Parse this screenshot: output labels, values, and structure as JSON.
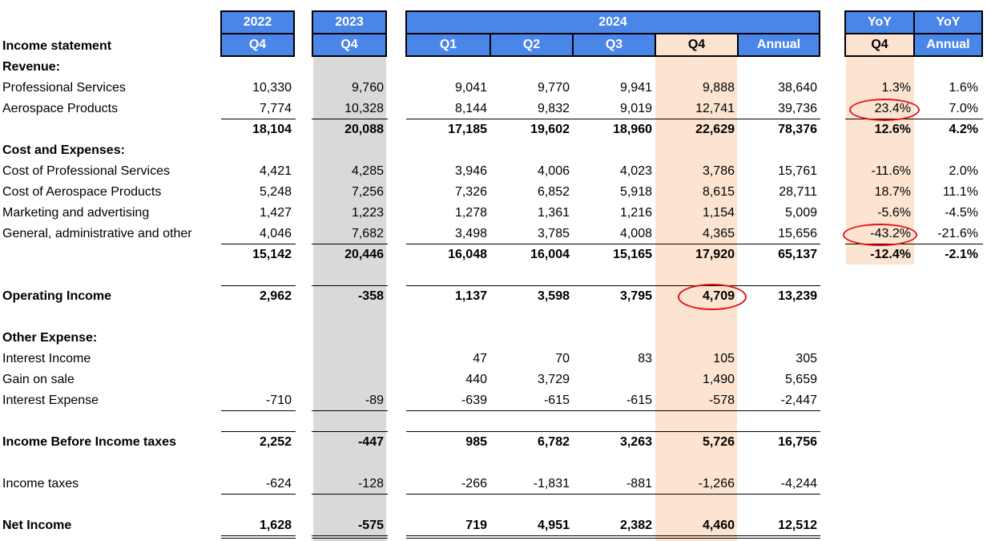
{
  "header": {
    "y2022": "2022",
    "y2023": "2023",
    "y2024": "2024",
    "yoy_q4": "YoY",
    "yoy_annual": "YoY",
    "q_2022": "Q4",
    "q_2023": "Q4",
    "q1": "Q1",
    "q2": "Q2",
    "q3": "Q3",
    "q4": "Q4",
    "annual": "Annual",
    "yoy_q4_sub": "Q4",
    "yoy_annual_sub": "Annual"
  },
  "title": "Income statement",
  "rows": [
    {
      "label": "Revenue:",
      "bold": true,
      "values": [
        "",
        "",
        "",
        "",
        "",
        "",
        "",
        "",
        ""
      ]
    },
    {
      "label": "Professional Services",
      "bold": false,
      "values": [
        "10,330",
        "9,760",
        "9,041",
        "9,770",
        "9,941",
        "9,888",
        "38,640",
        "1.3%",
        "1.6%"
      ]
    },
    {
      "label": "Aerospace Products",
      "bold": false,
      "values": [
        "7,774",
        "10,328",
        "8,144",
        "9,832",
        "9,019",
        "12,741",
        "39,736",
        "23.4%",
        "7.0%"
      ]
    },
    {
      "label": "",
      "bold": true,
      "values": [
        "18,104",
        "20,088",
        "17,185",
        "19,602",
        "18,960",
        "22,629",
        "78,376",
        "12.6%",
        "4.2%"
      ]
    },
    {
      "label": "Cost and Expenses:",
      "bold": true,
      "values": [
        "",
        "",
        "",
        "",
        "",
        "",
        "",
        "",
        ""
      ]
    },
    {
      "label": "Cost of Professional Services",
      "bold": false,
      "values": [
        "4,421",
        "4,285",
        "3,946",
        "4,006",
        "4,023",
        "3,786",
        "15,761",
        "-11.6%",
        "2.0%"
      ]
    },
    {
      "label": "Cost of Aerospace Products",
      "bold": false,
      "values": [
        "5,248",
        "7,256",
        "7,326",
        "6,852",
        "5,918",
        "8,615",
        "28,711",
        "18.7%",
        "11.1%"
      ]
    },
    {
      "label": "Marketing and advertising",
      "bold": false,
      "values": [
        "1,427",
        "1,223",
        "1,278",
        "1,361",
        "1,216",
        "1,154",
        "5,009",
        "-5.6%",
        "-4.5%"
      ]
    },
    {
      "label": "General, administrative and other",
      "bold": false,
      "values": [
        "4,046",
        "7,682",
        "3,498",
        "3,785",
        "4,008",
        "4,365",
        "15,656",
        "-43.2%",
        "-21.6%"
      ]
    },
    {
      "label": "",
      "bold": true,
      "values": [
        "15,142",
        "20,446",
        "16,048",
        "16,004",
        "15,165",
        "17,920",
        "65,137",
        "-12.4%",
        "-2.1%"
      ]
    },
    {
      "label": "",
      "bold": false,
      "values": [
        "",
        "",
        "",
        "",
        "",
        "",
        "",
        "",
        ""
      ]
    },
    {
      "label": "Operating Income",
      "bold": true,
      "values": [
        "2,962",
        "-358",
        "1,137",
        "3,598",
        "3,795",
        "4,709",
        "13,239",
        "",
        ""
      ]
    },
    {
      "label": "",
      "bold": false,
      "values": [
        "",
        "",
        "",
        "",
        "",
        "",
        "",
        "",
        ""
      ]
    },
    {
      "label": "Other Expense:",
      "bold": true,
      "values": [
        "",
        "",
        "",
        "",
        "",
        "",
        "",
        "",
        ""
      ]
    },
    {
      "label": "Interest Income",
      "bold": false,
      "values": [
        "",
        "",
        "47",
        "70",
        "83",
        "105",
        "305",
        "",
        ""
      ]
    },
    {
      "label": "Gain on sale",
      "bold": false,
      "values": [
        "",
        "",
        "440",
        "3,729",
        "",
        "1,490",
        "5,659",
        "",
        ""
      ]
    },
    {
      "label": "Interest Expense",
      "bold": false,
      "values": [
        "-710",
        "-89",
        "-639",
        "-615",
        "-615",
        "-578",
        "-2,447",
        "",
        ""
      ]
    },
    {
      "label": "",
      "bold": false,
      "values": [
        "",
        "",
        "",
        "",
        "",
        "",
        "",
        "",
        ""
      ]
    },
    {
      "label": "Income Before Income taxes",
      "bold": true,
      "values": [
        "2,252",
        "-447",
        "985",
        "6,782",
        "3,263",
        "5,726",
        "16,756",
        "",
        ""
      ]
    },
    {
      "label": "",
      "bold": false,
      "values": [
        "",
        "",
        "",
        "",
        "",
        "",
        "",
        "",
        ""
      ]
    },
    {
      "label": "Income taxes",
      "bold": false,
      "values": [
        "-624",
        "-128",
        "-266",
        "-1,831",
        "-881",
        "-1,266",
        "-4,244",
        "",
        ""
      ]
    },
    {
      "label": "",
      "bold": false,
      "values": [
        "",
        "",
        "",
        "",
        "",
        "",
        "",
        "",
        ""
      ]
    },
    {
      "label": "Net Income",
      "bold": true,
      "values": [
        "1,628",
        "-575",
        "719",
        "4,951",
        "2,382",
        "4,460",
        "12,512",
        "",
        ""
      ]
    }
  ],
  "colors": {
    "header_blue": "#4a86e8",
    "gray_band": "#d9d9d9",
    "peach_band": "#fce4d0",
    "highlight_ring": "#e0141b"
  }
}
